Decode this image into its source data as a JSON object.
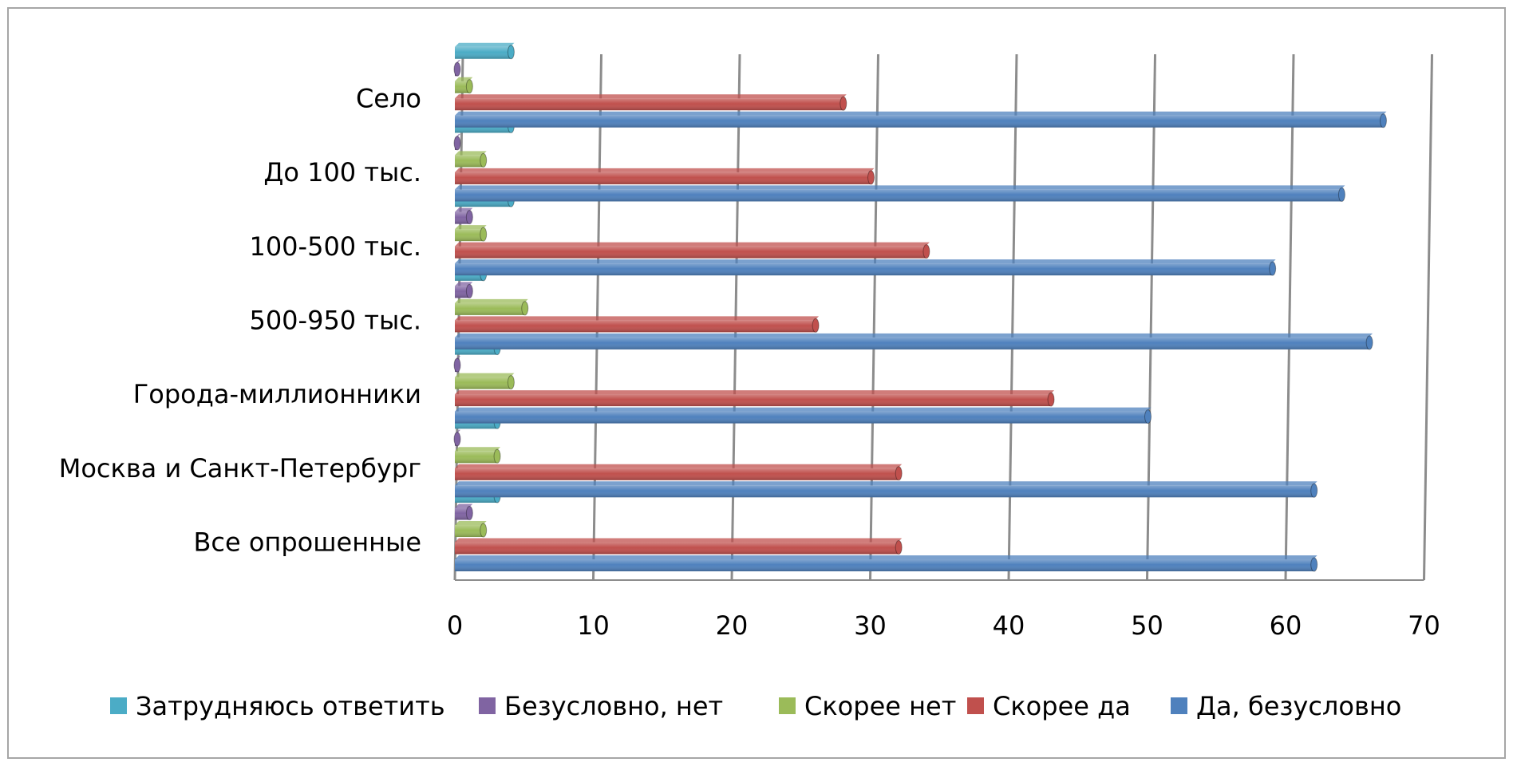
{
  "chart_data": {
    "type": "bar",
    "orientation": "horizontal",
    "style": "3d",
    "categories": [
      "Все опрошенные",
      "Москва и Санкт-Петербург",
      "Города-миллионники",
      "500-950 тыс.",
      "100-500 тыс.",
      "До 100 тыс.",
      "Село"
    ],
    "series": [
      {
        "name": "Да, безусловно",
        "color": "#4F81BD",
        "values": [
          62,
          62,
          50,
          66,
          59,
          64,
          67
        ]
      },
      {
        "name": "Скорее да",
        "color": "#C0504D",
        "values": [
          32,
          32,
          43,
          26,
          34,
          30,
          28
        ]
      },
      {
        "name": "Скорее нет",
        "color": "#9BBB59",
        "values": [
          2,
          3,
          4,
          5,
          2,
          2,
          1
        ]
      },
      {
        "name": "Безусловно, нет",
        "color": "#8064A2",
        "values": [
          1,
          0,
          0,
          1,
          1,
          0,
          0
        ]
      },
      {
        "name": "Затрудняюсь ответить",
        "color": "#4BACC6",
        "values": [
          3,
          3,
          3,
          2,
          4,
          4,
          4
        ]
      }
    ],
    "legend_order": [
      "Затрудняюсь ответить",
      "Безусловно, нет",
      "Скорее нет",
      "Скорее да",
      "Да, безусловно"
    ],
    "x_ticks": [
      "0",
      "10",
      "20",
      "30",
      "40",
      "50",
      "60",
      "70"
    ],
    "xlim": [
      0,
      70
    ],
    "grid": true,
    "legend_position": "bottom"
  }
}
